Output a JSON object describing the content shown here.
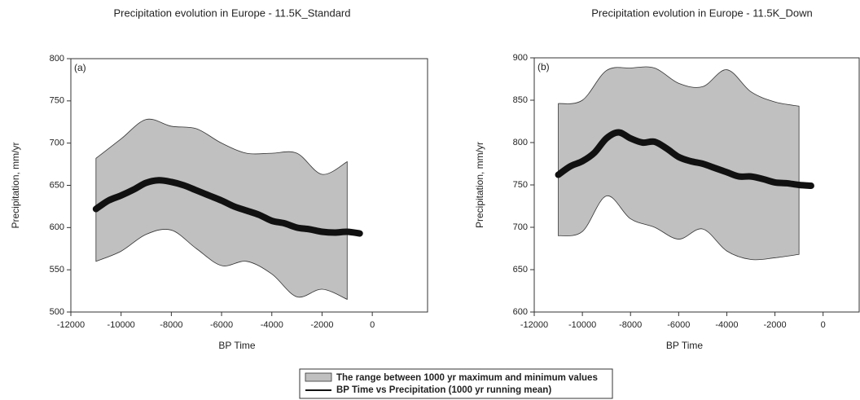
{
  "chart_data": [
    {
      "type": "range-line",
      "title": "Precipitation evolution in Europe - 11.5K_Standard",
      "panel_label": "(a)",
      "x_label": "BP Time",
      "y_label": "Precipitation, mm/yr",
      "xlim": [
        -12000,
        2200
      ],
      "ylim": [
        500,
        800
      ],
      "xticks": [
        -12000,
        -10000,
        -8000,
        -6000,
        -4000,
        -2000,
        0
      ],
      "yticks": [
        500,
        550,
        600,
        650,
        700,
        750,
        800
      ],
      "band": {
        "name": "The range between 1000 yr maximum and minimum values",
        "color": "#c0c0c0",
        "x": [
          -11000,
          -10000,
          -9000,
          -8000,
          -7000,
          -6000,
          -5000,
          -4000,
          -3000,
          -2000,
          -1000
        ],
        "upper": [
          682,
          705,
          728,
          720,
          717,
          700,
          688,
          688,
          688,
          663,
          678
        ],
        "lower": [
          560,
          572,
          592,
          597,
          575,
          555,
          560,
          545,
          518,
          527,
          515
        ]
      },
      "series": [
        {
          "name": "BP Time vs Precipitation (1000 yr running mean)",
          "color": "#111111",
          "x": [
            -11000,
            -10500,
            -10000,
            -9500,
            -9000,
            -8500,
            -8000,
            -7500,
            -7000,
            -6500,
            -6000,
            -5500,
            -5000,
            -4500,
            -4000,
            -3500,
            -3000,
            -2500,
            -2000,
            -1500,
            -1000,
            -500
          ],
          "values": [
            622,
            632,
            638,
            645,
            653,
            656,
            654,
            650,
            644,
            638,
            632,
            625,
            620,
            615,
            608,
            605,
            600,
            598,
            595,
            594,
            595,
            593
          ]
        }
      ]
    },
    {
      "type": "range-line",
      "title": "Precipitation evolution in Europe - 11.5K_Down",
      "panel_label": "(b)",
      "x_label": "BP Time",
      "y_label": "Precipitation, mm/yr",
      "xlim": [
        -12000,
        1500
      ],
      "ylim": [
        600,
        900
      ],
      "xticks": [
        -12000,
        -10000,
        -8000,
        -6000,
        -4000,
        -2000,
        0
      ],
      "yticks": [
        600,
        650,
        700,
        750,
        800,
        850,
        900
      ],
      "band": {
        "color": "#c0c0c0",
        "x": [
          -11000,
          -10000,
          -9000,
          -8000,
          -7000,
          -6000,
          -5000,
          -4000,
          -3000,
          -2000,
          -1000
        ],
        "upper": [
          846,
          850,
          885,
          888,
          888,
          870,
          866,
          886,
          860,
          848,
          843
        ],
        "lower": [
          690,
          695,
          737,
          710,
          700,
          686,
          698,
          672,
          662,
          664,
          668
        ]
      },
      "series": [
        {
          "color": "#111111",
          "x": [
            -11000,
            -10500,
            -10000,
            -9500,
            -9000,
            -8500,
            -8000,
            -7500,
            -7000,
            -6500,
            -6000,
            -5500,
            -5000,
            -4500,
            -4000,
            -3500,
            -3000,
            -2500,
            -2000,
            -1500,
            -1000,
            -500
          ],
          "values": [
            762,
            772,
            778,
            788,
            805,
            812,
            805,
            800,
            801,
            793,
            783,
            778,
            775,
            770,
            765,
            760,
            760,
            757,
            753,
            752,
            750,
            749
          ]
        }
      ]
    }
  ]
}
